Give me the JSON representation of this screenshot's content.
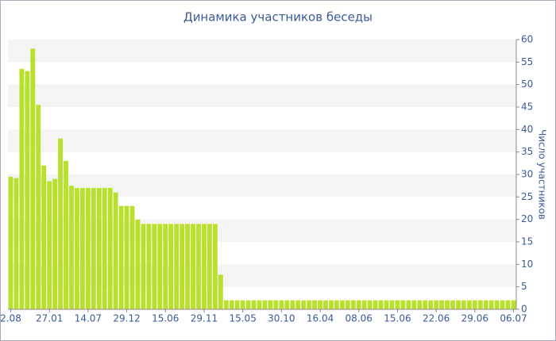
{
  "chart_data": {
    "type": "bar",
    "title": "Динамика участников беседы",
    "y_label": "Число участников",
    "categories": [
      "2.08",
      null,
      null,
      null,
      null,
      null,
      null,
      "27.01",
      null,
      null,
      null,
      null,
      null,
      null,
      "14.07",
      null,
      null,
      null,
      null,
      null,
      null,
      "29.12",
      null,
      null,
      null,
      null,
      null,
      null,
      "15.06",
      null,
      null,
      null,
      null,
      null,
      null,
      "29.11",
      null,
      null,
      null,
      null,
      null,
      null,
      "15.05",
      null,
      null,
      null,
      null,
      null,
      null,
      "30.10",
      null,
      null,
      null,
      null,
      null,
      null,
      "16.04",
      null,
      null,
      null,
      null,
      null,
      null,
      "08.06",
      null,
      null,
      null,
      null,
      null,
      null,
      "15.06",
      null,
      null,
      null,
      null,
      null,
      null,
      "22.06",
      null,
      null,
      null,
      null,
      null,
      null,
      "29.06",
      null,
      null,
      null,
      null,
      null,
      null,
      "06.07"
    ],
    "values": [
      29.5,
      29.2,
      53.5,
      53,
      58,
      45.5,
      32,
      28.5,
      29,
      38,
      33,
      27.5,
      27,
      27,
      27,
      27,
      27,
      27,
      27,
      26,
      23,
      23,
      23,
      20,
      19,
      19,
      19,
      19,
      19,
      19,
      19,
      19,
      19,
      19,
      19,
      19,
      19,
      19,
      7.7,
      2,
      2,
      2,
      2,
      2,
      2,
      2,
      2,
      2,
      2,
      2,
      2,
      2,
      2,
      2,
      2,
      2,
      2,
      2,
      2,
      2,
      2,
      2,
      2,
      2,
      2,
      2,
      2,
      2,
      2,
      2,
      2,
      2,
      2,
      2,
      2,
      2,
      2,
      2,
      2,
      2,
      2,
      2,
      2,
      2,
      2,
      2,
      2,
      2,
      2,
      2,
      2,
      2
    ],
    "color": "#b8e02c",
    "ylim": [
      0,
      60
    ],
    "yticks": [
      0,
      5,
      10,
      15,
      20,
      25,
      30,
      35,
      40,
      45,
      50,
      55,
      60
    ],
    "grid": true,
    "y_axis_side": "right"
  }
}
